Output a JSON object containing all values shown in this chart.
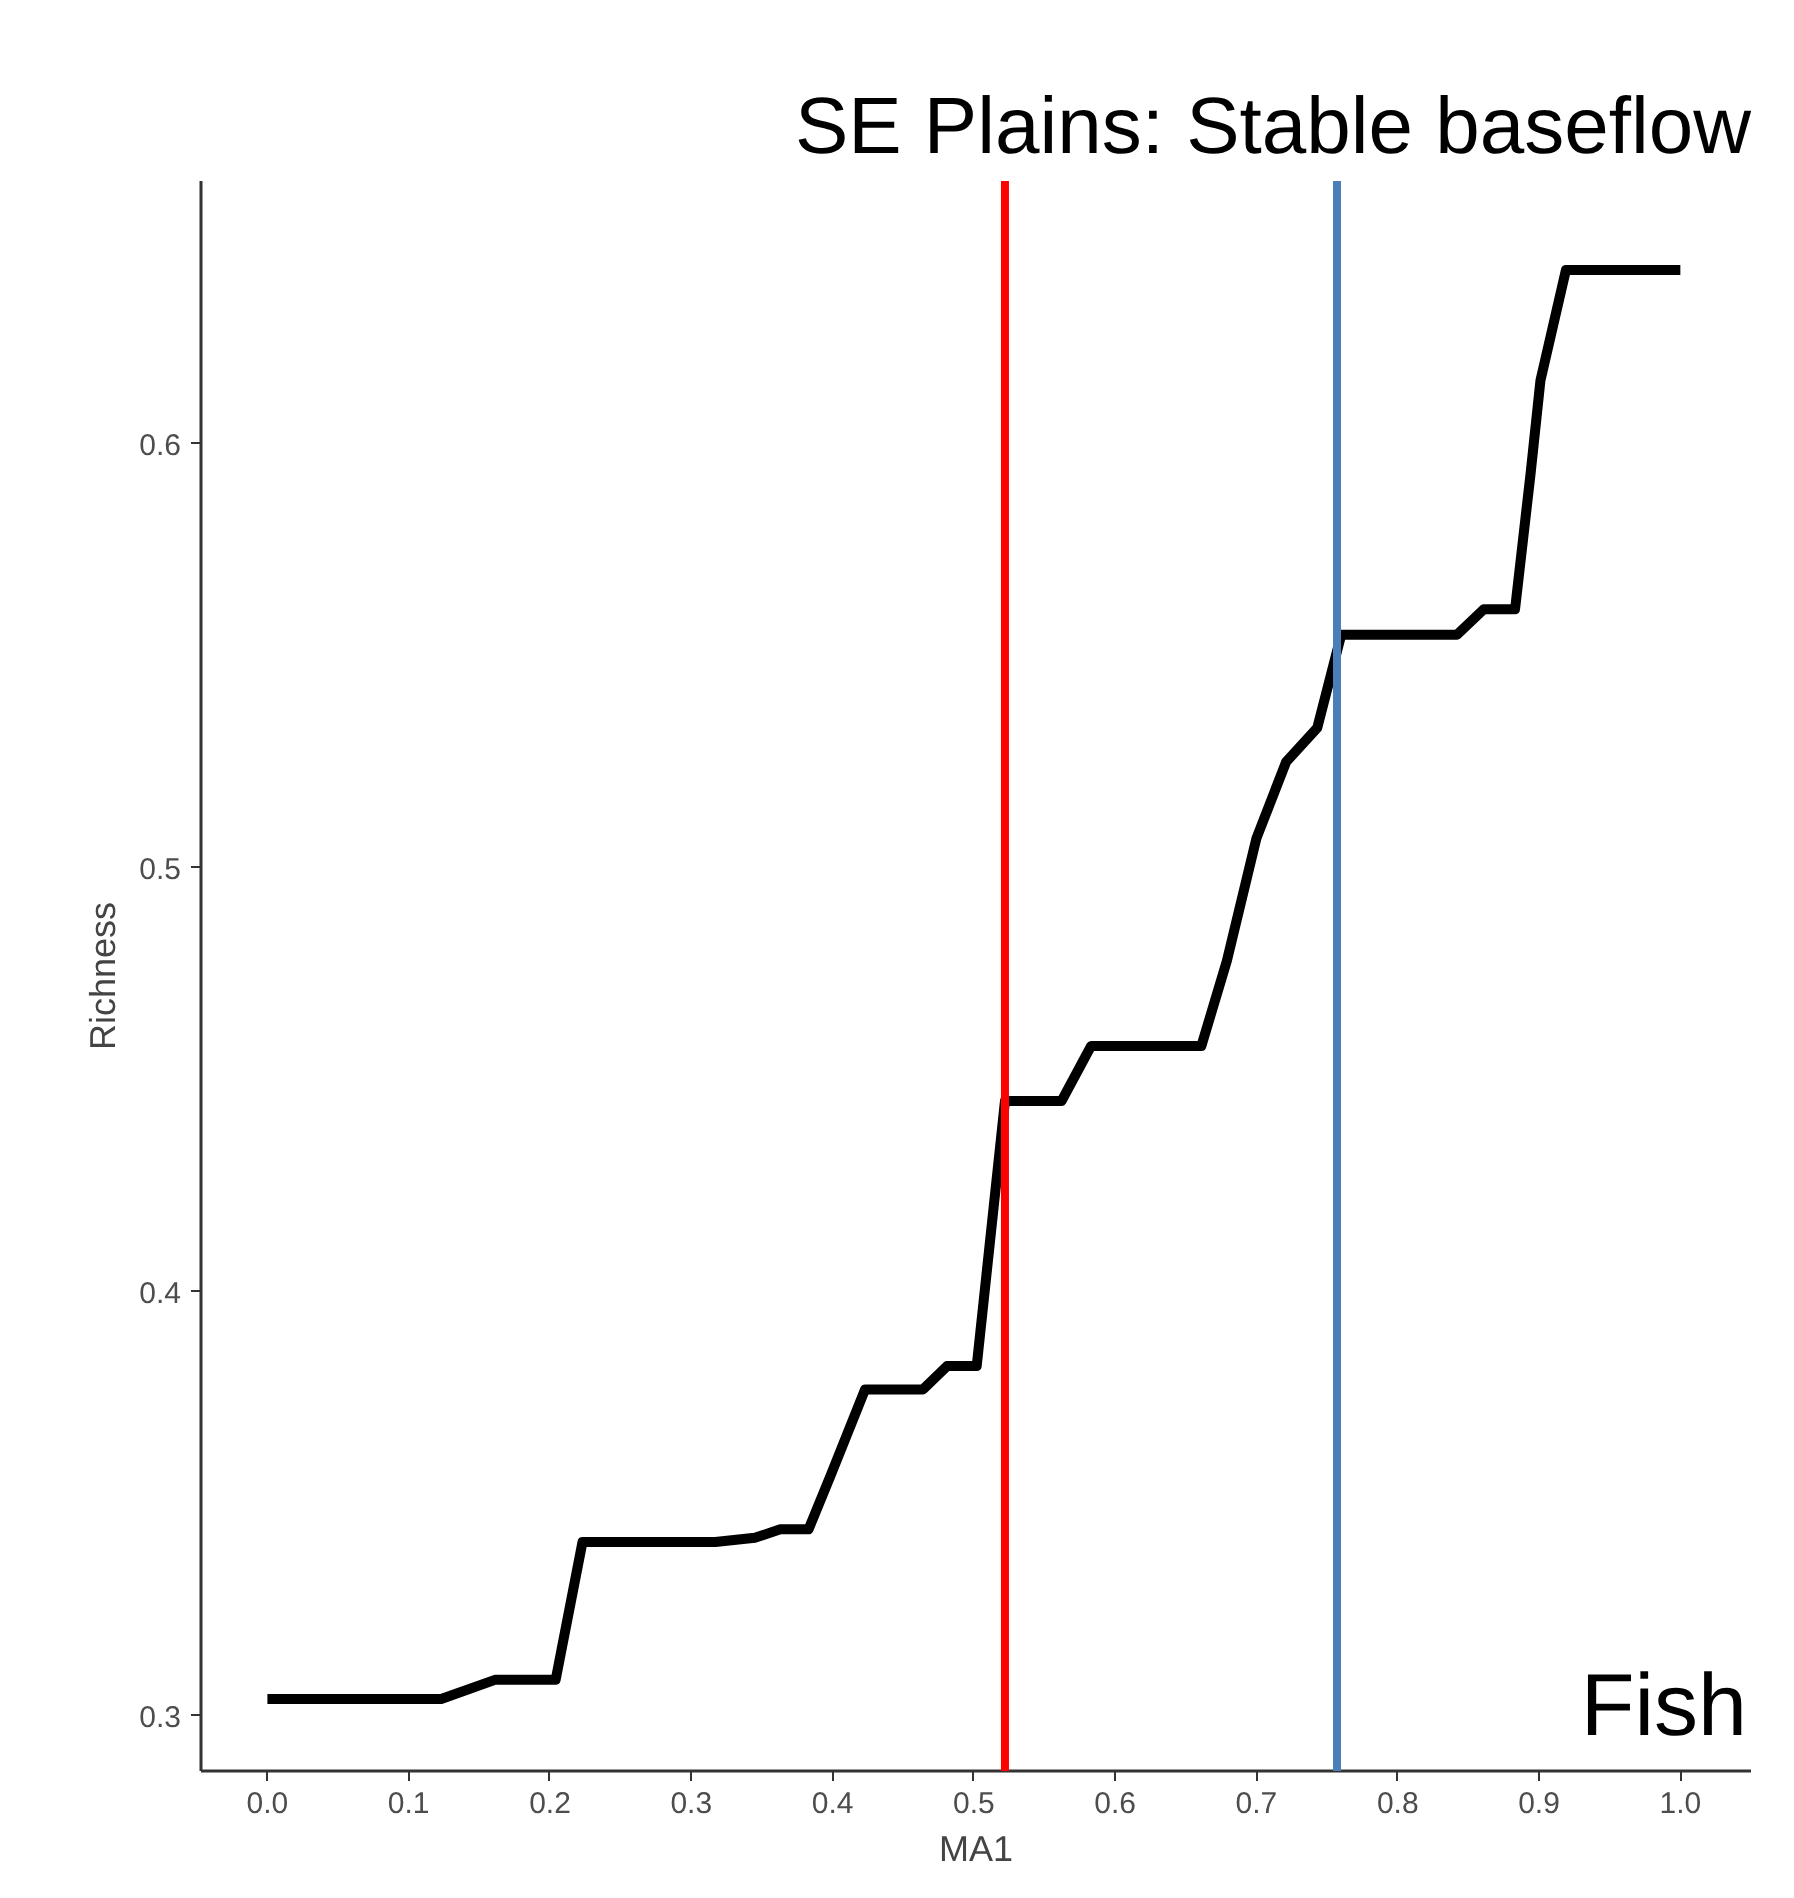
{
  "chart_data": {
    "type": "line",
    "title": "SE Plains: Stable baseflow",
    "xlabel": "MA1",
    "ylabel": "Richness",
    "x": [
      0.0,
      0.123,
      0.161,
      0.204,
      0.223,
      0.317,
      0.345,
      0.363,
      0.383,
      0.399,
      0.423,
      0.464,
      0.481,
      0.502,
      0.522,
      0.562,
      0.583,
      0.661,
      0.679,
      0.7,
      0.721,
      0.743,
      0.76,
      0.842,
      0.861,
      0.883,
      0.894,
      0.901,
      0.919,
      1.0
    ],
    "series": [
      {
        "color": "#000000",
        "values": [
          0.304,
          0.304,
          0.3085,
          0.3085,
          0.341,
          0.341,
          0.342,
          0.344,
          0.344,
          0.357,
          0.377,
          0.377,
          0.3825,
          0.3825,
          0.445,
          0.445,
          0.458,
          0.458,
          0.478,
          0.507,
          0.525,
          0.533,
          0.555,
          0.555,
          0.561,
          0.561,
          0.593,
          0.615,
          0.641,
          0.641
        ]
      }
    ],
    "xlim": [
      -0.047,
      1.05
    ],
    "ylim": [
      0.287,
      0.662
    ],
    "xticks": [
      {
        "value": 0.0,
        "label": "0.0"
      },
      0.1,
      0.2,
      0.3,
      0.4,
      0.5,
      0.6,
      0.7,
      0.8,
      0.9,
      {
        "value": 1.0,
        "label": "1.0"
      }
    ],
    "yticks": [
      0.3,
      0.4,
      0.5,
      0.6
    ],
    "ref_lines": [
      {
        "axis": "x",
        "value": 0.522,
        "color": "#ff0000"
      },
      {
        "axis": "x",
        "value": 0.757,
        "color": "#4a7ebb"
      }
    ],
    "annotations": [
      "Fish"
    ],
    "grid": false,
    "marker": "none",
    "line_style": "solid"
  }
}
